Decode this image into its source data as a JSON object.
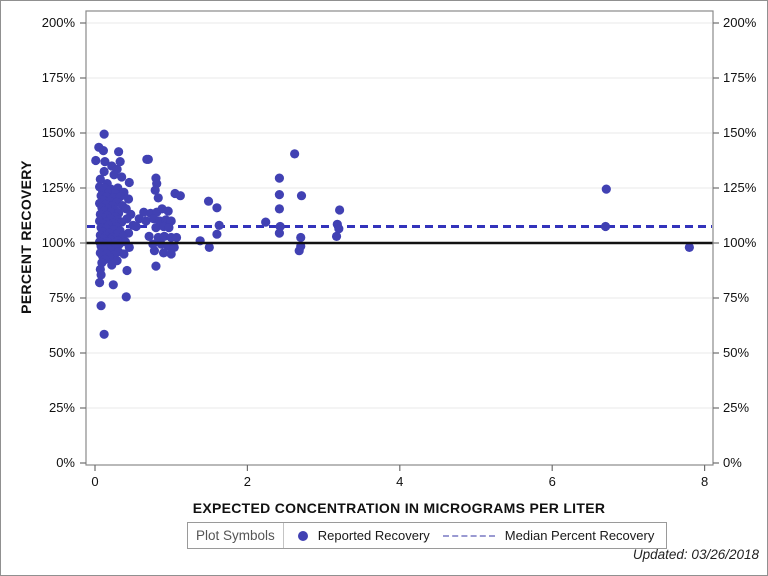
{
  "figure": {
    "updated_note": "Updated: 03/26/2018"
  },
  "colors": {
    "point": "#4141b3",
    "median_line": "#3333bb",
    "reference_line": "#111111",
    "grid": "#e8e8e8",
    "frame": "#8a8a8a",
    "tick": "#6e6e6e",
    "legend_dash": "#9a9ad2"
  },
  "legend": {
    "title": "Plot Symbols",
    "items": [
      {
        "label": "Reported Recovery",
        "marker": "dot"
      },
      {
        "label": "Median Percent Recovery",
        "marker": "dashed-line"
      }
    ]
  },
  "chart_data": {
    "type": "scatter",
    "title": "",
    "xlabel": "EXPECTED CONCENTRATION IN MICROGRAMS PER LITER",
    "ylabel": "PERCENT RECOVERY",
    "xlim": [
      0,
      8
    ],
    "ylim": [
      0,
      200
    ],
    "x_ticks": [
      0,
      2,
      4,
      6,
      8
    ],
    "y_ticks": [
      0,
      25,
      50,
      75,
      100,
      125,
      150,
      175,
      200
    ],
    "y_tick_suffix": "%",
    "grid": "horizontal-only",
    "legend_position": "bottom",
    "reference_line_pct": 100,
    "median_percent_recovery_pct": 107.5,
    "series": [
      {
        "name": "Reported Recovery",
        "type": "points",
        "points": [
          [
            0.12,
            149.5
          ],
          [
            0.05,
            143.5
          ],
          [
            0.11,
            142
          ],
          [
            0.31,
            141.5
          ],
          [
            0.68,
            138
          ],
          [
            0.01,
            137.5
          ],
          [
            0.13,
            137
          ],
          [
            0.33,
            137
          ],
          [
            0.22,
            135
          ],
          [
            0.29,
            133.5
          ],
          [
            0.12,
            132.5
          ],
          [
            0.25,
            131
          ],
          [
            0.35,
            130
          ],
          [
            0.07,
            129
          ],
          [
            0.16,
            127
          ],
          [
            0.45,
            127.5
          ],
          [
            0.06,
            125.5
          ],
          [
            0.13,
            125
          ],
          [
            0.21,
            124.5
          ],
          [
            0.3,
            125
          ],
          [
            0.1,
            123.5
          ],
          [
            0.18,
            123
          ],
          [
            0.27,
            122.5
          ],
          [
            0.38,
            123
          ],
          [
            0.08,
            121.5
          ],
          [
            0.15,
            121
          ],
          [
            0.24,
            120.5
          ],
          [
            0.33,
            121
          ],
          [
            0.44,
            120
          ],
          [
            0.11,
            119.5
          ],
          [
            0.19,
            119
          ],
          [
            0.29,
            118.5
          ],
          [
            0.06,
            118
          ],
          [
            0.14,
            117.5
          ],
          [
            0.23,
            117
          ],
          [
            0.36,
            117
          ],
          [
            0.09,
            116
          ],
          [
            0.17,
            115.5
          ],
          [
            0.26,
            115
          ],
          [
            0.41,
            115.5
          ],
          [
            0.12,
            114.5
          ],
          [
            0.21,
            114
          ],
          [
            0.31,
            113.5
          ],
          [
            0.07,
            113
          ],
          [
            0.16,
            112.5
          ],
          [
            0.27,
            112
          ],
          [
            0.47,
            113
          ],
          [
            0.1,
            111.5
          ],
          [
            0.2,
            111
          ],
          [
            0.3,
            110.5
          ],
          [
            0.42,
            111
          ],
          [
            0.06,
            110
          ],
          [
            0.14,
            109.5
          ],
          [
            0.24,
            109
          ],
          [
            0.35,
            109.5
          ],
          [
            0.11,
            108.5
          ],
          [
            0.18,
            108
          ],
          [
            0.28,
            107.5
          ],
          [
            0.5,
            108
          ],
          [
            0.08,
            107
          ],
          [
            0.15,
            106.5
          ],
          [
            0.25,
            106
          ],
          [
            0.33,
            105.5
          ],
          [
            0.1,
            105
          ],
          [
            0.19,
            104.5
          ],
          [
            0.29,
            104
          ],
          [
            0.44,
            104.5
          ],
          [
            0.07,
            103.5
          ],
          [
            0.14,
            103
          ],
          [
            0.23,
            102.5
          ],
          [
            0.37,
            103
          ],
          [
            0.11,
            102
          ],
          [
            0.2,
            101.5
          ],
          [
            0.3,
            101
          ],
          [
            0.06,
            100.5
          ],
          [
            0.16,
            100.5
          ],
          [
            0.26,
            100
          ],
          [
            0.4,
            100.5
          ],
          [
            0.09,
            100
          ],
          [
            0.13,
            99.5
          ],
          [
            0.22,
            99
          ],
          [
            0.32,
            99.5
          ],
          [
            0.08,
            98.5
          ],
          [
            0.17,
            98
          ],
          [
            0.27,
            97.5
          ],
          [
            0.45,
            98
          ],
          [
            0.11,
            97
          ],
          [
            0.21,
            96.5
          ],
          [
            0.31,
            96
          ],
          [
            0.07,
            95.5
          ],
          [
            0.15,
            95
          ],
          [
            0.25,
            94.5
          ],
          [
            0.38,
            95
          ],
          [
            0.1,
            94
          ],
          [
            0.19,
            93.5
          ],
          [
            0.13,
            92.5
          ],
          [
            0.29,
            92
          ],
          [
            0.09,
            91
          ],
          [
            0.22,
            90
          ],
          [
            0.42,
            87.5
          ],
          [
            0.07,
            88
          ],
          [
            0.08,
            85.5
          ],
          [
            0.06,
            82
          ],
          [
            0.24,
            81
          ],
          [
            0.41,
            75.5
          ],
          [
            0.08,
            71.5
          ],
          [
            0.12,
            58.5
          ],
          [
            0.7,
            138
          ],
          [
            0.8,
            129.5
          ],
          [
            0.81,
            127
          ],
          [
            0.79,
            124
          ],
          [
            0.83,
            120.5
          ],
          [
            1.05,
            122.5
          ],
          [
            1.12,
            121.5
          ],
          [
            0.64,
            114
          ],
          [
            0.73,
            113.5
          ],
          [
            0.81,
            114
          ],
          [
            0.88,
            115.5
          ],
          [
            0.96,
            114.5
          ],
          [
            0.58,
            111
          ],
          [
            0.67,
            110
          ],
          [
            0.77,
            111
          ],
          [
            0.85,
            110
          ],
          [
            0.93,
            110.5
          ],
          [
            1.0,
            110
          ],
          [
            0.54,
            107.5
          ],
          [
            0.8,
            107
          ],
          [
            0.9,
            107.5
          ],
          [
            0.97,
            107
          ],
          [
            0.71,
            103
          ],
          [
            0.83,
            102.5
          ],
          [
            0.91,
            103
          ],
          [
            1.0,
            102.5
          ],
          [
            1.07,
            102.5
          ],
          [
            0.76,
            99.5
          ],
          [
            0.87,
            99.5
          ],
          [
            0.96,
            98.5
          ],
          [
            1.04,
            98
          ],
          [
            0.78,
            96.5
          ],
          [
            0.9,
            95.5
          ],
          [
            1.0,
            95
          ],
          [
            0.8,
            89.5
          ],
          [
            1.38,
            101
          ],
          [
            1.49,
            119
          ],
          [
            1.5,
            98
          ],
          [
            1.6,
            116
          ],
          [
            1.6,
            104
          ],
          [
            1.63,
            108
          ],
          [
            2.24,
            109.5
          ],
          [
            2.42,
            129.5
          ],
          [
            2.42,
            122
          ],
          [
            2.42,
            115.5
          ],
          [
            2.43,
            107.5
          ],
          [
            2.42,
            104.5
          ],
          [
            2.62,
            140.5
          ],
          [
            2.71,
            121.5
          ],
          [
            2.7,
            102.5
          ],
          [
            2.7,
            98.5
          ],
          [
            2.68,
            96.5
          ],
          [
            3.21,
            115
          ],
          [
            3.18,
            108.5
          ],
          [
            3.2,
            106.5
          ],
          [
            3.17,
            103
          ],
          [
            6.71,
            124.5
          ],
          [
            6.7,
            107.5
          ],
          [
            7.8,
            98
          ]
        ]
      },
      {
        "name": "Median Percent Recovery",
        "type": "hline-dashed",
        "y_pct": 107.5
      }
    ]
  }
}
